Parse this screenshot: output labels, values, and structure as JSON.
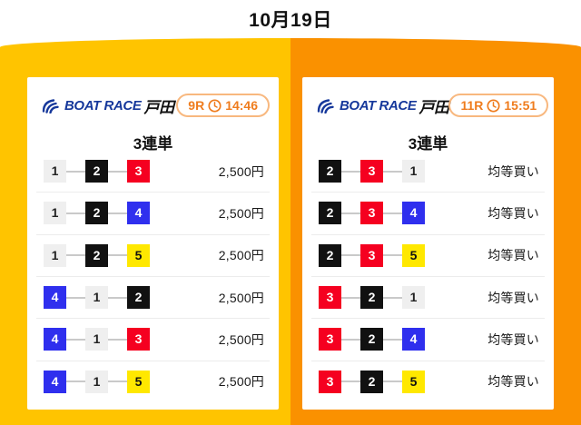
{
  "page": {
    "date": "10月19日"
  },
  "colors": {
    "frame_left": "#FFC400",
    "frame_right": "#FA9100",
    "brand_blue": "#16389B",
    "badge_orange": "#EF7C1D",
    "badge_border": "#F8B87F"
  },
  "boat_colors": {
    "1": {
      "bg": "#EFEFEF",
      "fg": "#222222"
    },
    "2": {
      "bg": "#111111",
      "fg": "#FFFFFF"
    },
    "3": {
      "bg": "#F50020",
      "fg": "#FFFFFF"
    },
    "4": {
      "bg": "#2F2FEE",
      "fg": "#FFFFFF"
    },
    "5": {
      "bg": "#FFE800",
      "fg": "#111111"
    },
    "6": {
      "bg": "#2AA25A",
      "fg": "#FFFFFF"
    }
  },
  "panels": [
    {
      "brand": {
        "name": "BOAT RACE",
        "venue": "戸田"
      },
      "race": {
        "number": "9R",
        "time": "14:46"
      },
      "bet_type": "3連単",
      "rows": [
        {
          "combo": [
            "1",
            "2",
            "3"
          ],
          "value": "2,500円"
        },
        {
          "combo": [
            "1",
            "2",
            "4"
          ],
          "value": "2,500円"
        },
        {
          "combo": [
            "1",
            "2",
            "5"
          ],
          "value": "2,500円"
        },
        {
          "combo": [
            "4",
            "1",
            "2"
          ],
          "value": "2,500円"
        },
        {
          "combo": [
            "4",
            "1",
            "3"
          ],
          "value": "2,500円"
        },
        {
          "combo": [
            "4",
            "1",
            "5"
          ],
          "value": "2,500円"
        }
      ]
    },
    {
      "brand": {
        "name": "BOAT RACE",
        "venue": "戸田"
      },
      "race": {
        "number": "11R",
        "time": "15:51"
      },
      "bet_type": "3連単",
      "rows": [
        {
          "combo": [
            "2",
            "3",
            "1"
          ],
          "value": "均等買い"
        },
        {
          "combo": [
            "2",
            "3",
            "4"
          ],
          "value": "均等買い"
        },
        {
          "combo": [
            "2",
            "3",
            "5"
          ],
          "value": "均等買い"
        },
        {
          "combo": [
            "3",
            "2",
            "1"
          ],
          "value": "均等買い"
        },
        {
          "combo": [
            "3",
            "2",
            "4"
          ],
          "value": "均等買い"
        },
        {
          "combo": [
            "3",
            "2",
            "5"
          ],
          "value": "均等買い"
        }
      ]
    }
  ]
}
